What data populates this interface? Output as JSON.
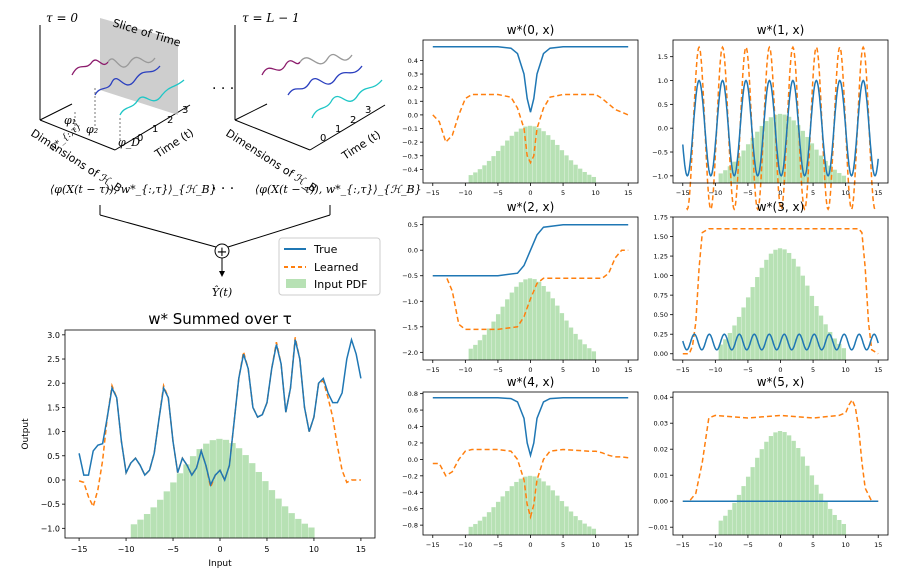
{
  "colors": {
    "true": "#1f77b4",
    "learned": "#ff7f0e",
    "pdf": "#98d494",
    "axis": "#000000"
  },
  "diagram": {
    "tau_left": "τ = 0",
    "tau_right": "τ = L − 1",
    "slice_label": "Slice of Time",
    "dims_label": "Dimensions of ℋ_B",
    "time_label": "Time (t)",
    "ticks": [
      "0",
      "1",
      "2",
      "3"
    ],
    "phi_labels": [
      "φ₁",
      "φ₂",
      "φ_D"
    ],
    "w_label": "w*_{:,τ}",
    "dots": "· · ·",
    "inner_product": "⟨φ(X(t − τ)), w*_{:,τ}⟩_{ℋ_B}",
    "sum_symbol": "+",
    "output_label": "Ŷ(t)"
  },
  "legend": {
    "true": "True",
    "learned": "Learned",
    "pdf": "Input PDF"
  },
  "chart_data": [
    {
      "id": "summed",
      "type": "line",
      "title": "w* Summed over τ",
      "xlabel": "Input",
      "ylabel": "Output",
      "xlim": [
        -16.5,
        16.5
      ],
      "ylim": [
        -1.2,
        3.1
      ],
      "xticks": [
        -15,
        -10,
        -5,
        0,
        5,
        10,
        15
      ],
      "yticks": [
        -1.0,
        -0.5,
        0.0,
        0.5,
        1.0,
        1.5,
        2.0,
        2.5,
        3.0
      ],
      "tick_labels_x": [
        "−15",
        "−10",
        "−5",
        "0",
        "5",
        "10",
        "15"
      ],
      "tick_labels_y": [
        "−1.0",
        "−0.5",
        "0.0",
        "0.5",
        "1.0",
        "1.5",
        "2.0",
        "2.5",
        "3.0"
      ],
      "true_x": [
        -15,
        -14.5,
        -14,
        -13.5,
        -13,
        -12.5,
        -12,
        -11.5,
        -11,
        -10.5,
        -10,
        -9.5,
        -9,
        -8.5,
        -8,
        -7.5,
        -7,
        -6.5,
        -6,
        -5.5,
        -5,
        -4.5,
        -4,
        -3.5,
        -3,
        -2.5,
        -2,
        -1.5,
        -1,
        -0.5,
        0,
        0.5,
        1,
        1.5,
        2,
        2.5,
        3,
        3.5,
        4,
        4.5,
        5,
        5.5,
        6,
        6.5,
        7,
        7.5,
        8,
        8.5,
        9,
        9.5,
        10,
        10.5,
        11,
        11.5,
        12,
        12.5,
        13,
        13.5,
        14,
        14.5,
        15
      ],
      "true_y": [
        0.55,
        0.1,
        0.1,
        0.6,
        0.72,
        0.75,
        1.3,
        1.9,
        1.7,
        0.8,
        0.15,
        0.35,
        0.45,
        0.3,
        0.1,
        0.2,
        0.55,
        1.25,
        1.9,
        1.7,
        0.8,
        0.15,
        0.45,
        0.3,
        0.1,
        0.25,
        0.6,
        0.3,
        -0.1,
        0.1,
        0.2,
        0.0,
        0.3,
        1.2,
        2.1,
        2.6,
        2.3,
        1.5,
        1.3,
        1.35,
        1.6,
        2.3,
        2.8,
        2.4,
        1.4,
        1.9,
        2.9,
        2.5,
        1.5,
        1.0,
        1.3,
        2.0,
        2.1,
        1.8,
        1.6,
        1.6,
        1.8,
        2.5,
        2.9,
        2.6,
        2.1
      ],
      "learned_x": [
        -15,
        -14.5,
        -14,
        -13.5,
        -13,
        -12.5,
        -12,
        -11.5,
        -11,
        -10.5,
        -10,
        -9.5,
        -9,
        -8.5,
        -8,
        -7.5,
        -7,
        -6.5,
        -6,
        -5.5,
        -5,
        -4.5,
        -4,
        -3.5,
        -3,
        -2.5,
        -2,
        -1.5,
        -1,
        -0.5,
        0,
        0.5,
        1,
        1.5,
        2,
        2.5,
        3,
        3.5,
        4,
        4.5,
        5,
        5.5,
        6,
        6.5,
        7,
        7.5,
        8,
        8.5,
        9,
        9.5,
        10,
        10.5,
        11,
        11.5,
        12,
        12.5,
        13,
        13.5,
        14,
        14.5,
        15
      ],
      "learned_y": [
        -0.02,
        -0.05,
        -0.35,
        -0.55,
        -0.2,
        0.4,
        1.3,
        1.95,
        1.7,
        0.8,
        0.15,
        0.35,
        0.45,
        0.3,
        0.1,
        0.2,
        0.55,
        1.25,
        1.95,
        1.7,
        0.8,
        0.15,
        0.45,
        0.3,
        0.1,
        0.25,
        0.6,
        0.3,
        -0.15,
        0.1,
        0.2,
        0.0,
        0.3,
        1.2,
        2.1,
        2.65,
        2.3,
        1.5,
        1.3,
        1.35,
        1.6,
        2.3,
        2.85,
        2.4,
        1.4,
        1.9,
        2.95,
        2.5,
        1.5,
        1.0,
        1.3,
        2.0,
        2.05,
        1.7,
        1.3,
        0.7,
        0.2,
        -0.05,
        0.0,
        0.0,
        0.0
      ],
      "pdf_ymax": 0.85
    },
    {
      "id": "w0",
      "type": "line",
      "title": "w*(0, x)",
      "xlim": [
        -16.5,
        16.5
      ],
      "ylim": [
        -0.5,
        0.55
      ],
      "xticks": [
        -15,
        -10,
        -5,
        0,
        5,
        10,
        15
      ],
      "yticks": [
        -0.4,
        -0.3,
        -0.2,
        -0.1,
        0.0,
        0.1,
        0.2,
        0.3,
        0.4
      ],
      "tick_labels_x": [
        "−15",
        "−10",
        "−5",
        "0",
        "5",
        "10",
        "15"
      ],
      "tick_labels_y": [
        "−0.4",
        "−0.3",
        "−0.2",
        "−0.1",
        "0.0",
        "0.1",
        "0.2",
        "0.3",
        "0.4"
      ],
      "true_x": [
        -15,
        -5,
        -3,
        -2,
        -1,
        -0.5,
        0,
        0.5,
        1,
        2,
        3,
        5,
        15
      ],
      "true_y": [
        0.5,
        0.5,
        0.49,
        0.45,
        0.3,
        0.12,
        0.02,
        0.12,
        0.3,
        0.45,
        0.49,
        0.5,
        0.5
      ],
      "learned_x": [
        -15,
        -14,
        -13,
        -12,
        -11,
        -10,
        -9,
        -5,
        -3,
        -2,
        -1,
        -0.5,
        0,
        0.5,
        1,
        2,
        3,
        5,
        9,
        10,
        11,
        12,
        13,
        14,
        15
      ],
      "learned_y": [
        0.0,
        -0.05,
        -0.2,
        -0.15,
        0.0,
        0.12,
        0.15,
        0.15,
        0.13,
        0.05,
        -0.1,
        -0.3,
        -0.35,
        -0.3,
        -0.1,
        0.05,
        0.13,
        0.15,
        0.15,
        0.15,
        0.12,
        0.08,
        0.04,
        0.02,
        0.0
      ],
      "pdf_ymax": -0.08
    },
    {
      "id": "w1",
      "type": "line",
      "title": "w*(1, x)",
      "xlim": [
        -16.5,
        16.5
      ],
      "ylim": [
        -1.15,
        1.85
      ],
      "xticks": [
        -15,
        -10,
        -5,
        0,
        5,
        10,
        15
      ],
      "yticks": [
        -1.0,
        -0.5,
        0.0,
        0.5,
        1.0,
        1.5
      ],
      "tick_labels_x": [
        "−15",
        "−10",
        "−5",
        "0",
        "5",
        "10",
        "15"
      ],
      "tick_labels_y": [
        "−1.0",
        "−0.5",
        "0.0",
        "0.5",
        "1.0",
        "1.5"
      ],
      "true_amp": 1.0,
      "true_period": 3.6,
      "true_phase": -12.5,
      "learned_amp": 1.7,
      "learned_period": 3.6,
      "learned_phase": -12.5,
      "pdf_ymax": 0.3
    },
    {
      "id": "w2",
      "type": "line",
      "title": "w*(2, x)",
      "xlim": [
        -16.5,
        16.5
      ],
      "ylim": [
        -2.15,
        0.65
      ],
      "xticks": [
        -15,
        -10,
        -5,
        0,
        5,
        10,
        15
      ],
      "yticks": [
        -2.0,
        -1.5,
        -1.0,
        -0.5,
        0.0,
        0.5
      ],
      "tick_labels_x": [
        "−15",
        "−10",
        "−5",
        "0",
        "5",
        "10",
        "15"
      ],
      "tick_labels_y": [
        "−2.0",
        "−1.5",
        "−1.0",
        "−0.5",
        "0.0",
        "0.5"
      ],
      "true_x": [
        -15,
        -5,
        -2,
        -1,
        0,
        1,
        2,
        5,
        15
      ],
      "true_y": [
        -0.5,
        -0.5,
        -0.45,
        -0.3,
        0.0,
        0.3,
        0.45,
        0.5,
        0.5
      ],
      "learned_x": [
        -15,
        -13,
        -12,
        -11,
        -10,
        -5,
        -2,
        -1,
        0,
        1,
        2,
        5,
        10,
        11,
        12,
        13,
        14,
        15
      ],
      "learned_y": [
        -0.5,
        -0.5,
        -0.8,
        -1.45,
        -1.55,
        -1.55,
        -1.5,
        -1.3,
        -0.95,
        -0.65,
        -0.55,
        -0.55,
        -0.55,
        -0.55,
        -0.45,
        -0.15,
        0.0,
        0.0
      ],
      "pdf_ymax": -0.55
    },
    {
      "id": "w3",
      "type": "line",
      "title": "w*(3, x)",
      "xlim": [
        -16.5,
        16.5
      ],
      "ylim": [
        -0.08,
        1.75
      ],
      "xticks": [
        -15,
        -10,
        -5,
        0,
        5,
        10,
        15
      ],
      "yticks": [
        0.0,
        0.25,
        0.5,
        0.75,
        1.0,
        1.25,
        1.5,
        1.75
      ],
      "tick_labels_x": [
        "−15",
        "−10",
        "−5",
        "0",
        "5",
        "10",
        "15"
      ],
      "tick_labels_y": [
        "0.00",
        "0.25",
        "0.50",
        "0.75",
        "1.00",
        "1.25",
        "1.50",
        "1.75"
      ],
      "true_amp": 0.1,
      "true_offset": 0.15,
      "true_period": 2.3,
      "learned_x": [
        -15,
        -14,
        -13.5,
        -13,
        -12.5,
        -12,
        -11,
        12,
        12.5,
        13,
        13.5,
        14,
        15
      ],
      "learned_y": [
        0.0,
        0.0,
        0.1,
        0.4,
        1.1,
        1.55,
        1.6,
        1.6,
        1.55,
        1.1,
        0.4,
        0.05,
        0.0
      ],
      "pdf_ymax": 1.35
    },
    {
      "id": "w4",
      "type": "line",
      "title": "w*(4, x)",
      "xlim": [
        -16.5,
        16.5
      ],
      "ylim": [
        -0.92,
        0.82
      ],
      "xticks": [
        -15,
        -10,
        -5,
        0,
        5,
        10,
        15
      ],
      "yticks": [
        -0.8,
        -0.6,
        -0.4,
        -0.2,
        0.0,
        0.2,
        0.4,
        0.6,
        0.8
      ],
      "tick_labels_x": [
        "−15",
        "−10",
        "−5",
        "0",
        "5",
        "10",
        "15"
      ],
      "tick_labels_y": [
        "−0.8",
        "−0.6",
        "−0.4",
        "−0.2",
        "0.0",
        "0.2",
        "0.4",
        "0.6",
        "0.8"
      ],
      "true_x": [
        -15,
        -5,
        -3,
        -2,
        -1,
        -0.5,
        0,
        0.5,
        1,
        2,
        3,
        5,
        15
      ],
      "true_y": [
        0.75,
        0.75,
        0.74,
        0.7,
        0.5,
        0.2,
        0.05,
        0.2,
        0.5,
        0.7,
        0.74,
        0.75,
        0.75
      ],
      "learned_x": [
        -15,
        -14,
        -13,
        -12,
        -11,
        -10,
        -9,
        -5,
        -3,
        -2,
        -1,
        -0.5,
        0,
        0.5,
        1,
        2,
        3,
        5,
        9,
        10,
        11,
        12,
        13,
        14,
        15
      ],
      "learned_y": [
        -0.05,
        -0.05,
        -0.2,
        -0.15,
        0.0,
        0.1,
        0.12,
        0.12,
        0.1,
        0.0,
        -0.25,
        -0.55,
        -0.7,
        -0.55,
        -0.25,
        0.0,
        0.1,
        0.12,
        0.1,
        0.1,
        0.08,
        0.05,
        0.03,
        0.03,
        0.02
      ],
      "pdf_ymax": -0.2
    },
    {
      "id": "w5",
      "type": "line",
      "title": "w*(5, x)",
      "xlim": [
        -16.5,
        16.5
      ],
      "ylim": [
        -0.013,
        0.042
      ],
      "xticks": [
        -15,
        -10,
        -5,
        0,
        5,
        10,
        15
      ],
      "yticks": [
        -0.01,
        0.0,
        0.01,
        0.02,
        0.03,
        0.04
      ],
      "tick_labels_x": [
        "−15",
        "−10",
        "−5",
        "0",
        "5",
        "10",
        "15"
      ],
      "tick_labels_y": [
        "−0.01",
        "0.00",
        "0.01",
        "0.02",
        "0.03",
        "0.04"
      ],
      "true_x": [
        -15,
        15
      ],
      "true_y": [
        0.0,
        0.0
      ],
      "learned_x": [
        -15,
        -14,
        -13,
        -12,
        -11,
        -10,
        -5,
        0,
        5,
        9,
        10,
        10.5,
        11,
        11.5,
        12,
        12.5,
        13,
        14,
        15
      ],
      "learned_y": [
        0.0,
        0.0,
        0.003,
        0.015,
        0.032,
        0.033,
        0.032,
        0.033,
        0.032,
        0.033,
        0.034,
        0.037,
        0.039,
        0.036,
        0.028,
        0.015,
        0.005,
        0.0,
        0.0
      ],
      "pdf_ymax": 0.027
    }
  ]
}
